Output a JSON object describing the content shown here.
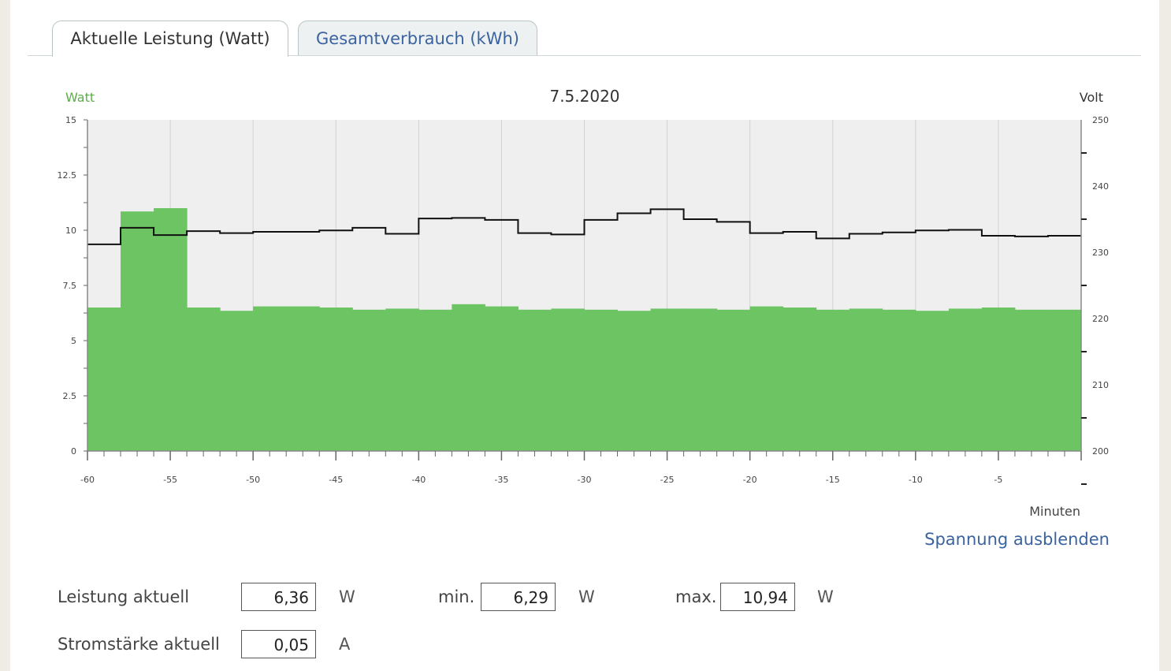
{
  "tabs": [
    {
      "label": "Aktuelle Leistung (Watt)",
      "active": true
    },
    {
      "label": "Gesamtverbrauch (kWh)",
      "active": false
    }
  ],
  "chart_data": {
    "type": "bar",
    "title": "7.5.2020",
    "xlabel": "Minuten",
    "ylabel": "Watt",
    "y2label": "Volt",
    "xlim": [
      -60,
      0
    ],
    "ylim": [
      0,
      15
    ],
    "y2lim": [
      200,
      250
    ],
    "x_ticks": [
      "-60",
      "-55",
      "-50",
      "-45",
      "-40",
      "-35",
      "-30",
      "-25",
      "-20",
      "-15",
      "-10",
      "-5"
    ],
    "y_ticks": [
      "0",
      "2.5",
      "5",
      "7.5",
      "10",
      "12.5",
      "15"
    ],
    "y2_ticks": [
      "200",
      "210",
      "220",
      "230",
      "240",
      "250"
    ],
    "grid": true,
    "series": [
      {
        "name": "Watt",
        "kind": "bar",
        "color": "#6cc463",
        "x": [
          -60,
          -58,
          -56,
          -54,
          -52,
          -50,
          -48,
          -46,
          -44,
          -42,
          -40,
          -38,
          -36,
          -34,
          -32,
          -30,
          -28,
          -26,
          -24,
          -22,
          -20,
          -18,
          -16,
          -14,
          -12,
          -10,
          -8,
          -6,
          -4,
          -2
        ],
        "values": [
          6.5,
          10.85,
          11.0,
          6.5,
          6.35,
          6.55,
          6.55,
          6.5,
          6.4,
          6.45,
          6.4,
          6.65,
          6.55,
          6.4,
          6.45,
          6.4,
          6.35,
          6.45,
          6.45,
          6.4,
          6.55,
          6.5,
          6.4,
          6.45,
          6.4,
          6.35,
          6.45,
          6.5,
          6.4,
          6.4
        ]
      },
      {
        "name": "Volt",
        "kind": "step-line",
        "color": "#111111",
        "axis": "right",
        "x": [
          -60,
          -58,
          -56,
          -54,
          -52,
          -50,
          -48,
          -46,
          -44,
          -42,
          -40,
          -38,
          -36,
          -34,
          -32,
          -30,
          -28,
          -26,
          -24,
          -22,
          -20,
          -18,
          -16,
          -14,
          -12,
          -10,
          -8,
          -6,
          -4,
          -2
        ],
        "values": [
          231.2,
          233.7,
          232.6,
          233.2,
          232.9,
          233.1,
          233.1,
          233.3,
          233.7,
          232.8,
          235.1,
          235.2,
          234.9,
          232.9,
          232.7,
          234.9,
          235.9,
          236.5,
          235.0,
          234.6,
          232.9,
          233.1,
          232.1,
          232.8,
          233.0,
          233.3,
          233.4,
          232.5,
          232.4,
          232.5
        ]
      }
    ]
  },
  "toggle_voltage_label": "Spannung ausblenden",
  "stats": {
    "power_label": "Leistung aktuell",
    "power_value": "6,36",
    "power_unit": "W",
    "min_label": "min.",
    "min_value": "6,29",
    "min_unit": "W",
    "max_label": "max.",
    "max_value": "10,94",
    "max_unit": "W",
    "current_label": "Stromstärke aktuell",
    "current_value": "0,05",
    "current_unit": "A"
  },
  "colors": {
    "accent": "#3a63a0",
    "watt_label": "#5aae46",
    "plot_bg": "#efefef"
  }
}
